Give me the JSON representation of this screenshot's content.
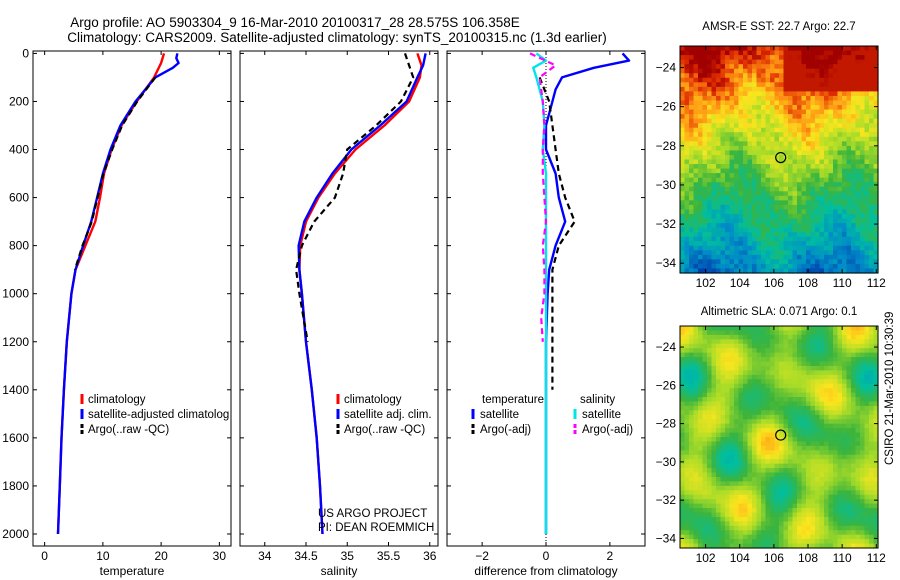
{
  "header": {
    "line1": "Argo profile: AO 5903304_9 16-Mar-2010 20100317_28 28.575S 106.358E",
    "line2": "Climatology: CARS2009. Satellite-adjusted climatology: synTS_20100315.nc (1.3d earlier)"
  },
  "side_note": "CSIRO 21-Mar-2010 10:30:39",
  "project_note": {
    "line1": "US ARGO PROJECT",
    "line2": "PI: DEAN ROEMMICH"
  },
  "colors": {
    "climatology": "#ff0000",
    "satellite": "#0000ff",
    "argo": "#000000",
    "sal_satellite": "#00e5e5",
    "sal_argo": "#ff00ff"
  },
  "chart_data": [
    {
      "id": "temperature",
      "type": "line",
      "xlabel": "temperature",
      "ylabel": "",
      "xlim": [
        -2,
        32
      ],
      "ylim": [
        2050,
        -10
      ],
      "x_ticks": [
        0,
        10,
        20,
        30
      ],
      "y_ticks": [
        0,
        200,
        400,
        600,
        800,
        1000,
        1200,
        1400,
        1600,
        1800,
        2000
      ],
      "legend": [
        "climatology",
        "satellite-adjusted climatolog",
        "Argo(..raw -QC)"
      ],
      "series": [
        {
          "name": "climatology",
          "color": "#ff0000",
          "dashed": false,
          "depth": [
            0,
            40,
            100,
            200,
            300,
            400,
            500,
            600,
            700,
            800,
            900,
            1000,
            1200,
            1400,
            1600,
            1800,
            2000
          ],
          "values": [
            20.5,
            20.0,
            18.8,
            15.8,
            13.2,
            11.5,
            10.2,
            9.5,
            8.7,
            7.0,
            5.3,
            4.6,
            3.8,
            3.3,
            2.9,
            2.6,
            2.3
          ]
        },
        {
          "name": "satellite-adjusted climatolog",
          "color": "#0000ff",
          "dashed": false,
          "depth": [
            0,
            20,
            40,
            60,
            100,
            200,
            300,
            400,
            500,
            600,
            700,
            800,
            900,
            1000,
            1200,
            1400,
            1600,
            1800,
            2000
          ],
          "values": [
            22.8,
            22.6,
            23.0,
            22.0,
            19.0,
            15.6,
            13.0,
            11.3,
            10.0,
            9.0,
            8.0,
            6.6,
            5.3,
            4.6,
            3.8,
            3.3,
            2.9,
            2.6,
            2.3
          ]
        },
        {
          "name": "Argo(..raw -QC)",
          "color": "#000000",
          "dashed": true,
          "depth": [
            100,
            200,
            300,
            400,
            500,
            600,
            700,
            800,
            900
          ],
          "values": [
            19.0,
            15.9,
            13.3,
            11.6,
            10.1,
            9.1,
            8.1,
            6.5,
            5.2
          ]
        }
      ]
    },
    {
      "id": "salinity",
      "type": "line",
      "xlabel": "salinity",
      "ylabel": "",
      "xlim": [
        33.7,
        36.1
      ],
      "ylim": [
        2050,
        -10
      ],
      "x_ticks": [
        34,
        34.5,
        35,
        35.5,
        36
      ],
      "y_ticks": [
        0,
        200,
        400,
        600,
        800,
        1000,
        1200,
        1400,
        1600,
        1800,
        2000
      ],
      "legend": [
        "climatology",
        "satellite adj. clim.",
        "Argo(..raw -QC)"
      ],
      "series": [
        {
          "name": "climatology",
          "color": "#ff0000",
          "dashed": false,
          "depth": [
            0,
            50,
            100,
            200,
            300,
            400,
            500,
            600,
            700,
            800,
            900,
            1000,
            1200,
            1400,
            1600,
            1800,
            2000
          ],
          "values": [
            35.85,
            35.9,
            35.88,
            35.75,
            35.45,
            35.1,
            34.85,
            34.65,
            34.5,
            34.43,
            34.42,
            34.45,
            34.5,
            34.57,
            34.63,
            34.67,
            34.7
          ]
        },
        {
          "name": "satellite adj. clim.",
          "color": "#0000ff",
          "dashed": false,
          "depth": [
            0,
            50,
            100,
            200,
            300,
            400,
            500,
            600,
            700,
            800,
            900,
            1000,
            1200,
            1400,
            1600,
            1800,
            2000
          ],
          "values": [
            35.95,
            35.92,
            35.85,
            35.72,
            35.4,
            35.05,
            34.82,
            34.63,
            34.48,
            34.41,
            34.42,
            34.45,
            34.5,
            34.57,
            34.63,
            34.67,
            34.7
          ]
        },
        {
          "name": "Argo(..raw -QC)",
          "color": "#000000",
          "dashed": true,
          "depth": [
            0,
            50,
            100,
            200,
            300,
            400,
            500,
            600,
            700,
            800,
            900,
            1000,
            1100,
            1200
          ],
          "values": [
            35.7,
            35.75,
            35.8,
            35.65,
            35.35,
            35.0,
            34.95,
            34.85,
            34.6,
            34.45,
            34.38,
            34.42,
            34.47,
            34.52
          ]
        }
      ]
    },
    {
      "id": "difference",
      "type": "line",
      "xlabel": "difference from climatology",
      "ylabel": "",
      "xlim": [
        -3.1,
        3.1
      ],
      "ylim": [
        2050,
        -10
      ],
      "x_ticks": [
        -2,
        0,
        2
      ],
      "y_ticks": [
        0,
        200,
        400,
        600,
        800,
        1000,
        1200,
        1400,
        1600,
        1800,
        2000
      ],
      "legend_titles": [
        "temperature",
        "salinity"
      ],
      "legend": [
        "satellite",
        "Argo(-adj)",
        "satellite",
        "Argo(-adj)"
      ],
      "series": [
        {
          "name": "satellite",
          "group": "temperature",
          "color": "#0000ff",
          "dashed": false,
          "depth": [
            0,
            30,
            60,
            100,
            150,
            200,
            300,
            400,
            500,
            600,
            700,
            800,
            900,
            1000,
            1200,
            1400,
            1600,
            1800,
            2000
          ],
          "values": [
            2.4,
            2.6,
            1.5,
            0.5,
            0.3,
            0.2,
            0.0,
            0.0,
            0.3,
            0.4,
            0.6,
            0.3,
            0.1,
            0.05,
            0.0,
            0.0,
            0.0,
            0.0,
            0.0
          ]
        },
        {
          "name": "Argo(-adj)",
          "group": "temperature",
          "color": "#000000",
          "dashed": true,
          "depth": [
            100,
            200,
            300,
            400,
            500,
            600,
            700,
            800,
            900,
            1000,
            1200,
            1400
          ],
          "values": [
            -0.2,
            0.1,
            0.2,
            0.3,
            0.4,
            0.6,
            0.9,
            0.4,
            0.2,
            0.2,
            0.2,
            0.2
          ]
        },
        {
          "name": "satellite",
          "group": "salinity",
          "color": "#00e5e5",
          "dashed": false,
          "depth": [
            0,
            30,
            60,
            100,
            200,
            300,
            400,
            500,
            600,
            700,
            800,
            900,
            1000,
            1200,
            1400,
            1600,
            1800,
            2000
          ],
          "values": [
            -0.3,
            0.0,
            -0.4,
            -0.3,
            -0.1,
            -0.05,
            -0.1,
            0.0,
            0.0,
            0.0,
            0.0,
            0.0,
            0.0,
            0.0,
            0.0,
            0.0,
            0.0,
            0.0
          ]
        },
        {
          "name": "Argo(-adj)",
          "group": "salinity",
          "color": "#ff00ff",
          "dashed": true,
          "depth": [
            0,
            50,
            100,
            200,
            300,
            400,
            500,
            600,
            700,
            800,
            900,
            1000,
            1100,
            1200
          ],
          "values": [
            -0.5,
            0.3,
            -0.2,
            -0.1,
            -0.05,
            -0.1,
            -0.1,
            -0.05,
            0.0,
            -0.1,
            -0.05,
            -0.05,
            -0.15,
            -0.1
          ]
        }
      ]
    },
    {
      "id": "sst_map",
      "type": "heatmap",
      "title": "AMSR-E SST: 22.7 Argo: 22.7",
      "xlim": [
        100.5,
        112.1
      ],
      "ylim": [
        -34.5,
        -22.9
      ],
      "x_ticks": [
        102,
        104,
        106,
        108,
        110,
        112
      ],
      "y_ticks": [
        -24,
        -26,
        -28,
        -30,
        -32,
        -34
      ],
      "marker": [
        106.4,
        -28.6
      ]
    },
    {
      "id": "sla_map",
      "type": "heatmap",
      "title": "Altimetric SLA: 0.071 Argo: 0.1",
      "xlim": [
        100.5,
        112.1
      ],
      "ylim": [
        -34.5,
        -22.9
      ],
      "x_ticks": [
        102,
        104,
        106,
        108,
        110,
        112
      ],
      "y_ticks": [
        -24,
        -26,
        -28,
        -30,
        -32,
        -34
      ],
      "marker": [
        106.4,
        -28.6
      ]
    }
  ]
}
